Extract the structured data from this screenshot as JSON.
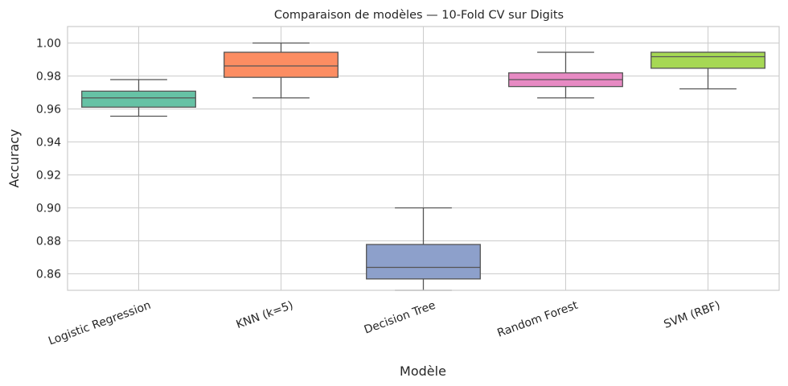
{
  "chart_data": {
    "type": "box",
    "title": "Comparaison de modèles — 10-Fold CV sur Digits",
    "xlabel": "Modèle",
    "ylabel": "Accuracy",
    "ylim": [
      0.85,
      1.01
    ],
    "yticks": [
      "0.86",
      "0.88",
      "0.90",
      "0.92",
      "0.94",
      "0.96",
      "0.98",
      "1.00"
    ],
    "grid": true,
    "categories": [
      "Logistic Regression",
      "KNN (k=5)",
      "Decision Tree",
      "Random Forest",
      "SVM (RBF)"
    ],
    "boxes": [
      {
        "min": 0.9556,
        "q1": 0.9611,
        "median": 0.9667,
        "q3": 0.9708,
        "max": 0.9778,
        "color": "#66c2a5"
      },
      {
        "min": 0.9667,
        "q1": 0.9792,
        "median": 0.9861,
        "q3": 0.9944,
        "max": 1.0,
        "color": "#fc8d62"
      },
      {
        "min": 0.85,
        "q1": 0.8569,
        "median": 0.8639,
        "q3": 0.8778,
        "max": 0.9,
        "color": "#8da0cb"
      },
      {
        "min": 0.9667,
        "q1": 0.9736,
        "median": 0.9778,
        "q3": 0.9819,
        "max": 0.9944,
        "color": "#e78ac3"
      },
      {
        "min": 0.9722,
        "q1": 0.9847,
        "median": 0.9917,
        "q3": 0.9944,
        "max": 0.9944,
        "color": "#a6d854"
      }
    ]
  }
}
